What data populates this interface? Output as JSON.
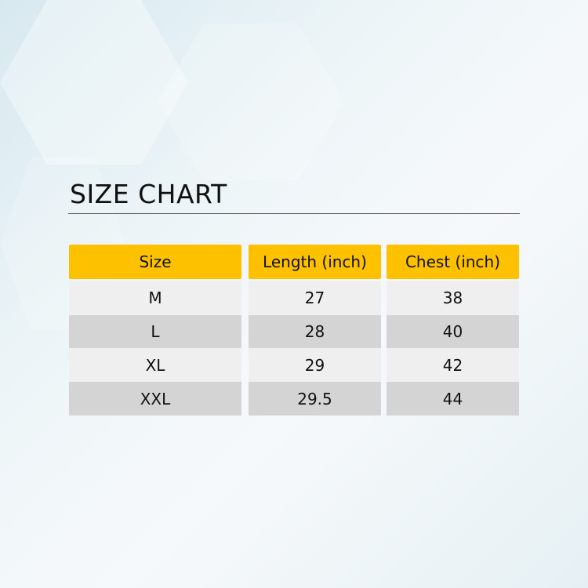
{
  "title": "SIZE CHART",
  "headers": [
    "Size",
    "Length (inch)",
    "Chest (inch)"
  ],
  "rows": [
    [
      "M",
      "27",
      "38"
    ],
    [
      "L",
      "28",
      "40"
    ],
    [
      "XL",
      "29",
      "42"
    ],
    [
      "XXL",
      "29.5",
      "44"
    ]
  ],
  "colors": {
    "header": "#fdc100",
    "row_light": "#efefef",
    "row_dark": "#d4d4d4"
  }
}
